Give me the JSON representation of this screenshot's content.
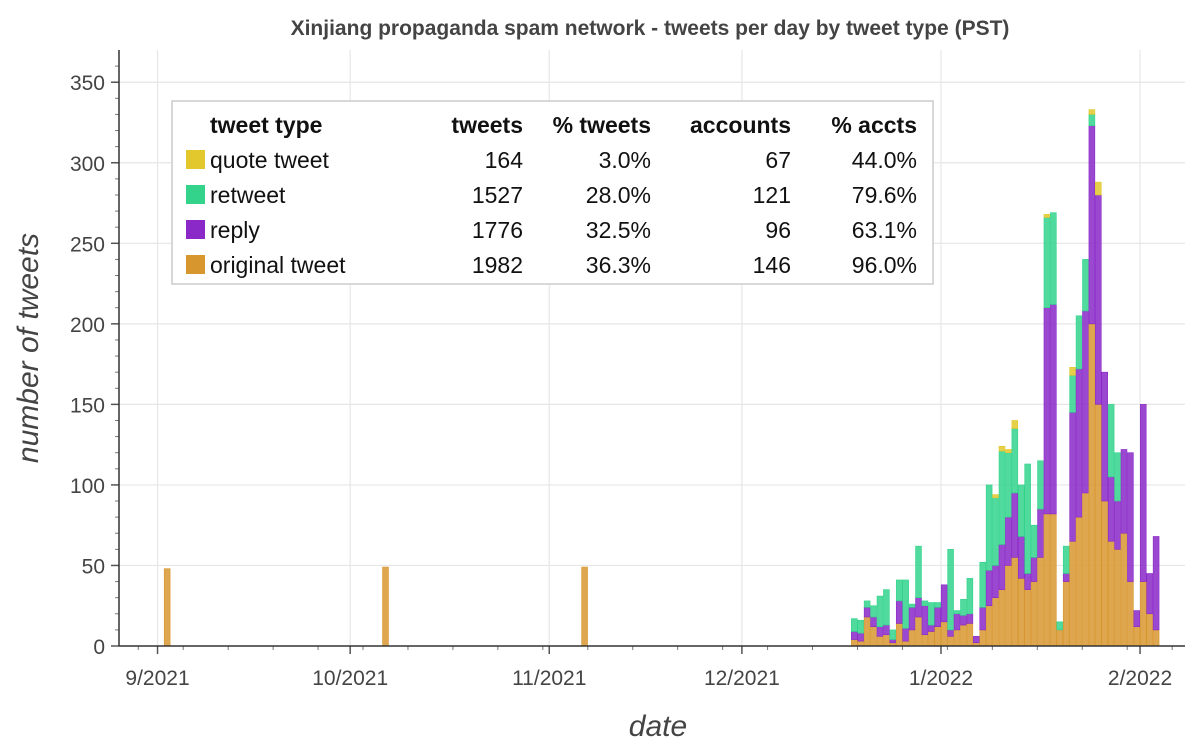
{
  "chart_data": {
    "type": "bar",
    "stacked": true,
    "title": "Xinjiang propaganda spam network - tweets per day by tweet type (PST)",
    "xlabel": "date",
    "ylabel": "number of tweets",
    "x_range": [
      "2021-08-26",
      "2022-02-08"
    ],
    "ylim": [
      0,
      370
    ],
    "yticks": [
      0,
      50,
      100,
      150,
      200,
      250,
      300,
      350
    ],
    "xticks": [
      {
        "date": "2021-09-01",
        "label": "9/2021"
      },
      {
        "date": "2021-10-01",
        "label": "10/2021"
      },
      {
        "date": "2021-11-01",
        "label": "11/2021"
      },
      {
        "date": "2021-12-01",
        "label": "12/2021"
      },
      {
        "date": "2022-01-01",
        "label": "1/2022"
      },
      {
        "date": "2022-02-01",
        "label": "2/2022"
      }
    ],
    "grid": true,
    "legend_position": "top-left",
    "series_order": [
      "original tweet",
      "reply",
      "retweet",
      "quote tweet"
    ],
    "colors": {
      "original tweet": "#d8962f",
      "reply": "#8a28c8",
      "retweet": "#33d38c",
      "quote tweet": "#e2c82c"
    },
    "legend": {
      "headers": [
        "tweet type",
        "tweets",
        "% tweets",
        "accounts",
        "% accts"
      ],
      "rows": [
        {
          "type": "quote tweet",
          "color": "#e2c82c",
          "tweets": "164",
          "pct_tweets": "3.0%",
          "accounts": "67",
          "pct_accts": "44.0%"
        },
        {
          "type": "retweet",
          "color": "#33d38c",
          "tweets": "1527",
          "pct_tweets": "28.0%",
          "accounts": "121",
          "pct_accts": "79.6%"
        },
        {
          "type": "reply",
          "color": "#8a28c8",
          "tweets": "1776",
          "pct_tweets": "32.5%",
          "accounts": "96",
          "pct_accts": "63.1%"
        },
        {
          "type": "original tweet",
          "color": "#d8962f",
          "tweets": "1982",
          "pct_tweets": "36.3%",
          "accounts": "146",
          "pct_accts": "96.0%"
        }
      ]
    },
    "points": [
      {
        "date": "2021-09-02",
        "original": 48,
        "reply": 0,
        "retweet": 0,
        "quote": 0
      },
      {
        "date": "2021-10-06",
        "original": 49,
        "reply": 0,
        "retweet": 0,
        "quote": 0
      },
      {
        "date": "2021-11-06",
        "original": 49,
        "reply": 0,
        "retweet": 0,
        "quote": 0
      },
      {
        "date": "2021-12-18",
        "original": 4,
        "reply": 5,
        "retweet": 8,
        "quote": 0
      },
      {
        "date": "2021-12-19",
        "original": 3,
        "reply": 5,
        "retweet": 8,
        "quote": 0
      },
      {
        "date": "2021-12-20",
        "original": 18,
        "reply": 6,
        "retweet": 4,
        "quote": 0
      },
      {
        "date": "2021-12-21",
        "original": 12,
        "reply": 6,
        "retweet": 7,
        "quote": 0
      },
      {
        "date": "2021-12-22",
        "original": 6,
        "reply": 6,
        "retweet": 19,
        "quote": 0
      },
      {
        "date": "2021-12-23",
        "original": 7,
        "reply": 6,
        "retweet": 22,
        "quote": 0
      },
      {
        "date": "2021-12-24",
        "original": 2,
        "reply": 2,
        "retweet": 6,
        "quote": 0
      },
      {
        "date": "2021-12-25",
        "original": 14,
        "reply": 14,
        "retweet": 13,
        "quote": 0
      },
      {
        "date": "2021-12-26",
        "original": 3,
        "reply": 8,
        "retweet": 30,
        "quote": 0
      },
      {
        "date": "2021-12-27",
        "original": 10,
        "reply": 14,
        "retweet": 2,
        "quote": 0
      },
      {
        "date": "2021-12-28",
        "original": 18,
        "reply": 12,
        "retweet": 32,
        "quote": 0
      },
      {
        "date": "2021-12-29",
        "original": 7,
        "reply": 18,
        "retweet": 3,
        "quote": 0
      },
      {
        "date": "2021-12-30",
        "original": 9,
        "reply": 4,
        "retweet": 14,
        "quote": 0
      },
      {
        "date": "2021-12-31",
        "original": 12,
        "reply": 12,
        "retweet": 3,
        "quote": 0
      },
      {
        "date": "2022-01-01",
        "original": 15,
        "reply": 23,
        "retweet": 0,
        "quote": 0
      },
      {
        "date": "2022-01-02",
        "original": 6,
        "reply": 4,
        "retweet": 50,
        "quote": 0
      },
      {
        "date": "2022-01-03",
        "original": 10,
        "reply": 10,
        "retweet": 2,
        "quote": 0
      },
      {
        "date": "2022-01-04",
        "original": 13,
        "reply": 6,
        "retweet": 10,
        "quote": 0
      },
      {
        "date": "2022-01-05",
        "original": 14,
        "reply": 6,
        "retweet": 22,
        "quote": 0
      },
      {
        "date": "2022-01-06",
        "original": 2,
        "reply": 4,
        "retweet": 0,
        "quote": 0
      },
      {
        "date": "2022-01-07",
        "original": 10,
        "reply": 14,
        "retweet": 28,
        "quote": 0
      },
      {
        "date": "2022-01-08",
        "original": 25,
        "reply": 22,
        "retweet": 53,
        "quote": 0
      },
      {
        "date": "2022-01-09",
        "original": 30,
        "reply": 20,
        "retweet": 42,
        "quote": 2
      },
      {
        "date": "2022-01-10",
        "original": 35,
        "reply": 28,
        "retweet": 58,
        "quote": 3
      },
      {
        "date": "2022-01-11",
        "original": 50,
        "reply": 30,
        "retweet": 40,
        "quote": 2
      },
      {
        "date": "2022-01-12",
        "original": 55,
        "reply": 40,
        "retweet": 40,
        "quote": 5
      },
      {
        "date": "2022-01-13",
        "original": 42,
        "reply": 26,
        "retweet": 32,
        "quote": 0
      },
      {
        "date": "2022-01-14",
        "original": 35,
        "reply": 10,
        "retweet": 68,
        "quote": 0
      },
      {
        "date": "2022-01-15",
        "original": 40,
        "reply": 15,
        "retweet": 20,
        "quote": 0
      },
      {
        "date": "2022-01-16",
        "original": 55,
        "reply": 30,
        "retweet": 30,
        "quote": 0
      },
      {
        "date": "2022-01-17",
        "original": 82,
        "reply": 128,
        "retweet": 56,
        "quote": 2
      },
      {
        "date": "2022-01-18",
        "original": 82,
        "reply": 130,
        "retweet": 57,
        "quote": 0
      },
      {
        "date": "2022-01-19",
        "original": 10,
        "reply": 0,
        "retweet": 5,
        "quote": 0
      },
      {
        "date": "2022-01-20",
        "original": 40,
        "reply": 5,
        "retweet": 17,
        "quote": 0
      },
      {
        "date": "2022-01-21",
        "original": 65,
        "reply": 80,
        "retweet": 23,
        "quote": 5
      },
      {
        "date": "2022-01-22",
        "original": 80,
        "reply": 92,
        "retweet": 33,
        "quote": 0
      },
      {
        "date": "2022-01-23",
        "original": 95,
        "reply": 113,
        "retweet": 32,
        "quote": 0
      },
      {
        "date": "2022-01-24",
        "original": 200,
        "reply": 123,
        "retweet": 7,
        "quote": 3
      },
      {
        "date": "2022-01-25",
        "original": 150,
        "reply": 130,
        "retweet": 0,
        "quote": 8
      },
      {
        "date": "2022-01-26",
        "original": 90,
        "reply": 80,
        "retweet": 0,
        "quote": 0
      },
      {
        "date": "2022-01-27",
        "original": 65,
        "reply": 40,
        "retweet": 45,
        "quote": 0
      },
      {
        "date": "2022-01-28",
        "original": 60,
        "reply": 30,
        "retweet": 30,
        "quote": 0
      },
      {
        "date": "2022-01-29",
        "original": 70,
        "reply": 52,
        "retweet": 0,
        "quote": 0
      },
      {
        "date": "2022-01-30",
        "original": 40,
        "reply": 80,
        "retweet": 0,
        "quote": 0
      },
      {
        "date": "2022-01-31",
        "original": 12,
        "reply": 10,
        "retweet": 0,
        "quote": 0
      },
      {
        "date": "2022-02-01",
        "original": 40,
        "reply": 110,
        "retweet": 0,
        "quote": 0
      },
      {
        "date": "2022-02-02",
        "original": 20,
        "reply": 25,
        "retweet": 0,
        "quote": 0
      },
      {
        "date": "2022-02-03",
        "original": 10,
        "reply": 58,
        "retweet": 0,
        "quote": 0
      }
    ]
  }
}
